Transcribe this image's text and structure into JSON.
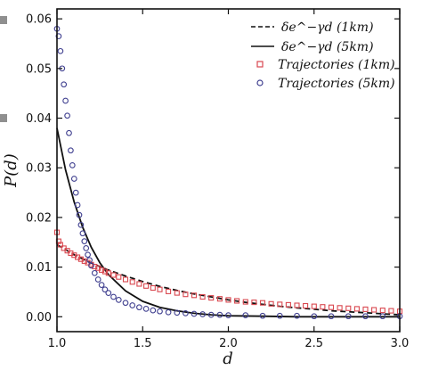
{
  "chart_data": {
    "type": "scatter",
    "xlabel": "d",
    "ylabel": "P(d)",
    "xlim": [
      1.0,
      3.0
    ],
    "ylim": [
      -0.003,
      0.062
    ],
    "x_ticks": [
      "1.0",
      "1.5",
      "2.0",
      "2.5",
      "3.0"
    ],
    "y_ticks": [
      "0.00",
      "0.01",
      "0.02",
      "0.03",
      "0.04",
      "0.05",
      "0.06"
    ],
    "x_tick_values": [
      1.0,
      1.5,
      2.0,
      2.5,
      3.0
    ],
    "y_tick_values": [
      0.0,
      0.01,
      0.02,
      0.03,
      0.04,
      0.05,
      0.06
    ],
    "grid": false,
    "legend_position": "top-right",
    "series": [
      {
        "name": "δe^{−γd} (1km)",
        "kind": "line",
        "style": "dashed",
        "color": "#111111",
        "x": [
          1.0,
          1.1,
          1.2,
          1.3,
          1.4,
          1.5,
          1.6,
          1.7,
          1.8,
          1.9,
          2.0,
          2.1,
          2.2,
          2.3,
          2.4,
          2.5,
          2.6,
          2.7,
          2.8,
          2.9,
          3.0
        ],
        "y": [
          0.0145,
          0.0125,
          0.0108,
          0.0094,
          0.0082,
          0.0071,
          0.0061,
          0.0053,
          0.0046,
          0.004,
          0.0034,
          0.0029,
          0.0025,
          0.0021,
          0.0018,
          0.0015,
          0.0012,
          0.001,
          0.0008,
          0.0006,
          0.0004
        ]
      },
      {
        "name": "δe^{−γd} (5km)",
        "kind": "line",
        "style": "solid",
        "color": "#111111",
        "x": [
          1.0,
          1.05,
          1.1,
          1.15,
          1.2,
          1.25,
          1.3,
          1.4,
          1.5,
          1.6,
          1.7,
          1.8,
          1.9,
          2.0,
          2.2,
          2.4,
          2.6,
          2.8,
          3.0
        ],
        "y": [
          0.038,
          0.0296,
          0.0231,
          0.018,
          0.014,
          0.0109,
          0.0085,
          0.0052,
          0.0031,
          0.0019,
          0.0012,
          0.0007,
          0.0004,
          0.0002,
          0.0001,
          0.0,
          0.0,
          0.0,
          0.0
        ]
      },
      {
        "name": "Trajectories (1km)",
        "kind": "scatter",
        "marker": "square",
        "color": "#d9474f",
        "x": [
          1.0,
          1.01,
          1.02,
          1.04,
          1.06,
          1.08,
          1.1,
          1.12,
          1.14,
          1.16,
          1.18,
          1.2,
          1.22,
          1.24,
          1.26,
          1.28,
          1.3,
          1.33,
          1.36,
          1.4,
          1.44,
          1.48,
          1.52,
          1.56,
          1.6,
          1.65,
          1.7,
          1.75,
          1.8,
          1.85,
          1.9,
          1.95,
          2.0,
          2.05,
          2.1,
          2.15,
          2.2,
          2.25,
          2.3,
          2.35,
          2.4,
          2.45,
          2.5,
          2.55,
          2.6,
          2.65,
          2.7,
          2.75,
          2.8,
          2.85,
          2.9,
          2.95,
          3.0
        ],
        "y": [
          0.017,
          0.0152,
          0.0145,
          0.0138,
          0.0133,
          0.0128,
          0.0124,
          0.012,
          0.0116,
          0.0112,
          0.0109,
          0.0105,
          0.0101,
          0.0098,
          0.0094,
          0.0091,
          0.0088,
          0.0084,
          0.008,
          0.0075,
          0.007,
          0.0066,
          0.0062,
          0.0058,
          0.0055,
          0.0051,
          0.0048,
          0.0045,
          0.0043,
          0.004,
          0.0038,
          0.0036,
          0.0034,
          0.0032,
          0.003,
          0.0029,
          0.0028,
          0.0026,
          0.0025,
          0.0024,
          0.0023,
          0.0022,
          0.0021,
          0.002,
          0.0019,
          0.0018,
          0.0017,
          0.0016,
          0.0015,
          0.0014,
          0.0013,
          0.0012,
          0.0011
        ]
      },
      {
        "name": "Trajectories (5km)",
        "kind": "scatter",
        "marker": "circle",
        "color": "#3f3f8f",
        "x": [
          1.0,
          1.01,
          1.02,
          1.03,
          1.04,
          1.05,
          1.06,
          1.07,
          1.08,
          1.09,
          1.1,
          1.11,
          1.12,
          1.13,
          1.14,
          1.15,
          1.16,
          1.17,
          1.18,
          1.19,
          1.2,
          1.22,
          1.24,
          1.26,
          1.28,
          1.3,
          1.33,
          1.36,
          1.4,
          1.44,
          1.48,
          1.52,
          1.56,
          1.6,
          1.65,
          1.7,
          1.75,
          1.8,
          1.85,
          1.9,
          1.95,
          2.0,
          2.1,
          2.2,
          2.3,
          2.4,
          2.5,
          2.6,
          2.7,
          2.8,
          2.9,
          3.0
        ],
        "y": [
          0.058,
          0.0565,
          0.0535,
          0.05,
          0.0468,
          0.0435,
          0.0405,
          0.037,
          0.0335,
          0.0305,
          0.0278,
          0.025,
          0.0225,
          0.0205,
          0.0185,
          0.0168,
          0.0152,
          0.0138,
          0.0125,
          0.0114,
          0.0103,
          0.0088,
          0.0075,
          0.0064,
          0.0055,
          0.0048,
          0.004,
          0.0034,
          0.0028,
          0.0023,
          0.0019,
          0.0016,
          0.0013,
          0.0011,
          0.0009,
          0.0008,
          0.0007,
          0.0006,
          0.0005,
          0.0004,
          0.0004,
          0.0003,
          0.0003,
          0.0002,
          0.0002,
          0.0002,
          0.0001,
          0.0001,
          0.0001,
          0.0001,
          0.0001,
          0.0001
        ]
      }
    ]
  },
  "colors": {
    "series_1km": "#d9474f",
    "series_5km": "#3f3f8f",
    "axis": "#111111",
    "edge_marker": "#8f8f8f"
  }
}
